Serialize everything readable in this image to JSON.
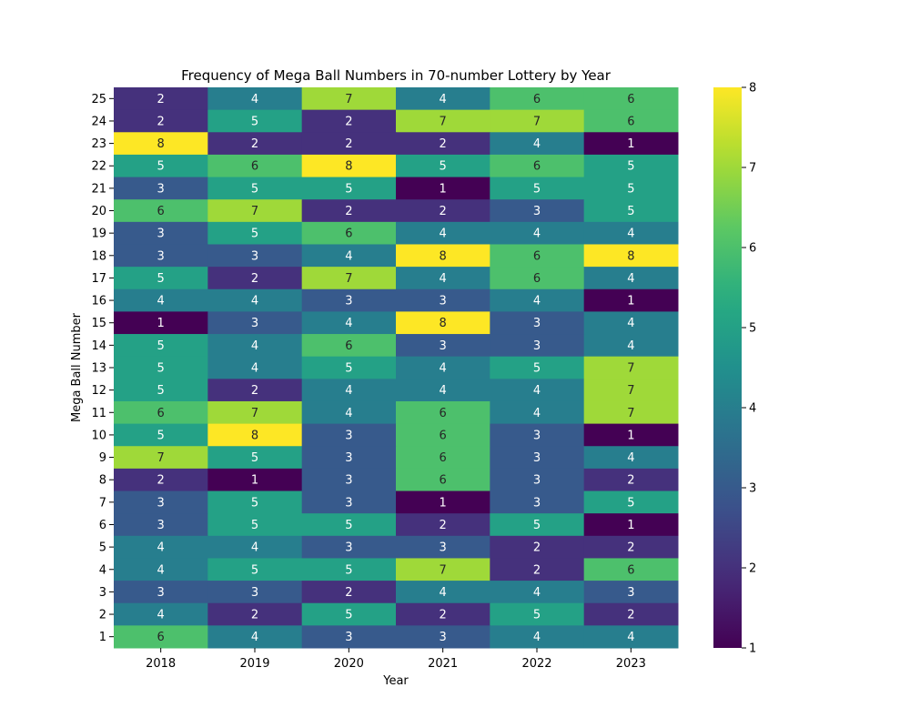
{
  "chart_data": {
    "type": "heatmap",
    "title": "Frequency of Mega Ball Numbers in 70-number Lottery by Year",
    "xlabel": "Year",
    "ylabel": "Mega Ball Number",
    "x_categories": [
      "2018",
      "2019",
      "2020",
      "2021",
      "2022",
      "2023"
    ],
    "y_categories": [
      "25",
      "24",
      "23",
      "22",
      "21",
      "20",
      "19",
      "18",
      "17",
      "16",
      "15",
      "14",
      "13",
      "12",
      "11",
      "10",
      "9",
      "8",
      "7",
      "6",
      "5",
      "4",
      "3",
      "2",
      "1"
    ],
    "values": [
      [
        2,
        4,
        7,
        4,
        6,
        6
      ],
      [
        2,
        5,
        2,
        7,
        7,
        6
      ],
      [
        8,
        2,
        2,
        2,
        4,
        1
      ],
      [
        5,
        6,
        8,
        5,
        6,
        5
      ],
      [
        3,
        5,
        5,
        1,
        5,
        5
      ],
      [
        6,
        7,
        2,
        2,
        3,
        5
      ],
      [
        3,
        5,
        6,
        4,
        4,
        4
      ],
      [
        3,
        3,
        4,
        8,
        6,
        8
      ],
      [
        5,
        2,
        7,
        4,
        6,
        4
      ],
      [
        4,
        4,
        3,
        3,
        4,
        1
      ],
      [
        1,
        3,
        4,
        8,
        3,
        4
      ],
      [
        5,
        4,
        6,
        3,
        3,
        4
      ],
      [
        5,
        4,
        5,
        4,
        5,
        7
      ],
      [
        5,
        2,
        4,
        4,
        4,
        7
      ],
      [
        6,
        7,
        4,
        6,
        4,
        7
      ],
      [
        5,
        8,
        3,
        6,
        3,
        1
      ],
      [
        7,
        5,
        3,
        6,
        3,
        4
      ],
      [
        2,
        1,
        3,
        6,
        3,
        2
      ],
      [
        3,
        5,
        3,
        1,
        3,
        5
      ],
      [
        3,
        5,
        5,
        2,
        5,
        1
      ],
      [
        4,
        4,
        3,
        3,
        2,
        2
      ],
      [
        4,
        5,
        5,
        7,
        2,
        6
      ],
      [
        3,
        3,
        2,
        4,
        4,
        3
      ],
      [
        4,
        2,
        5,
        2,
        5,
        2
      ],
      [
        6,
        4,
        3,
        3,
        4,
        4
      ]
    ],
    "colormap": "viridis",
    "colorbar": {
      "min": 1,
      "max": 8,
      "ticks": [
        1,
        2,
        3,
        4,
        5,
        6,
        7,
        8
      ]
    },
    "annotations": true
  }
}
